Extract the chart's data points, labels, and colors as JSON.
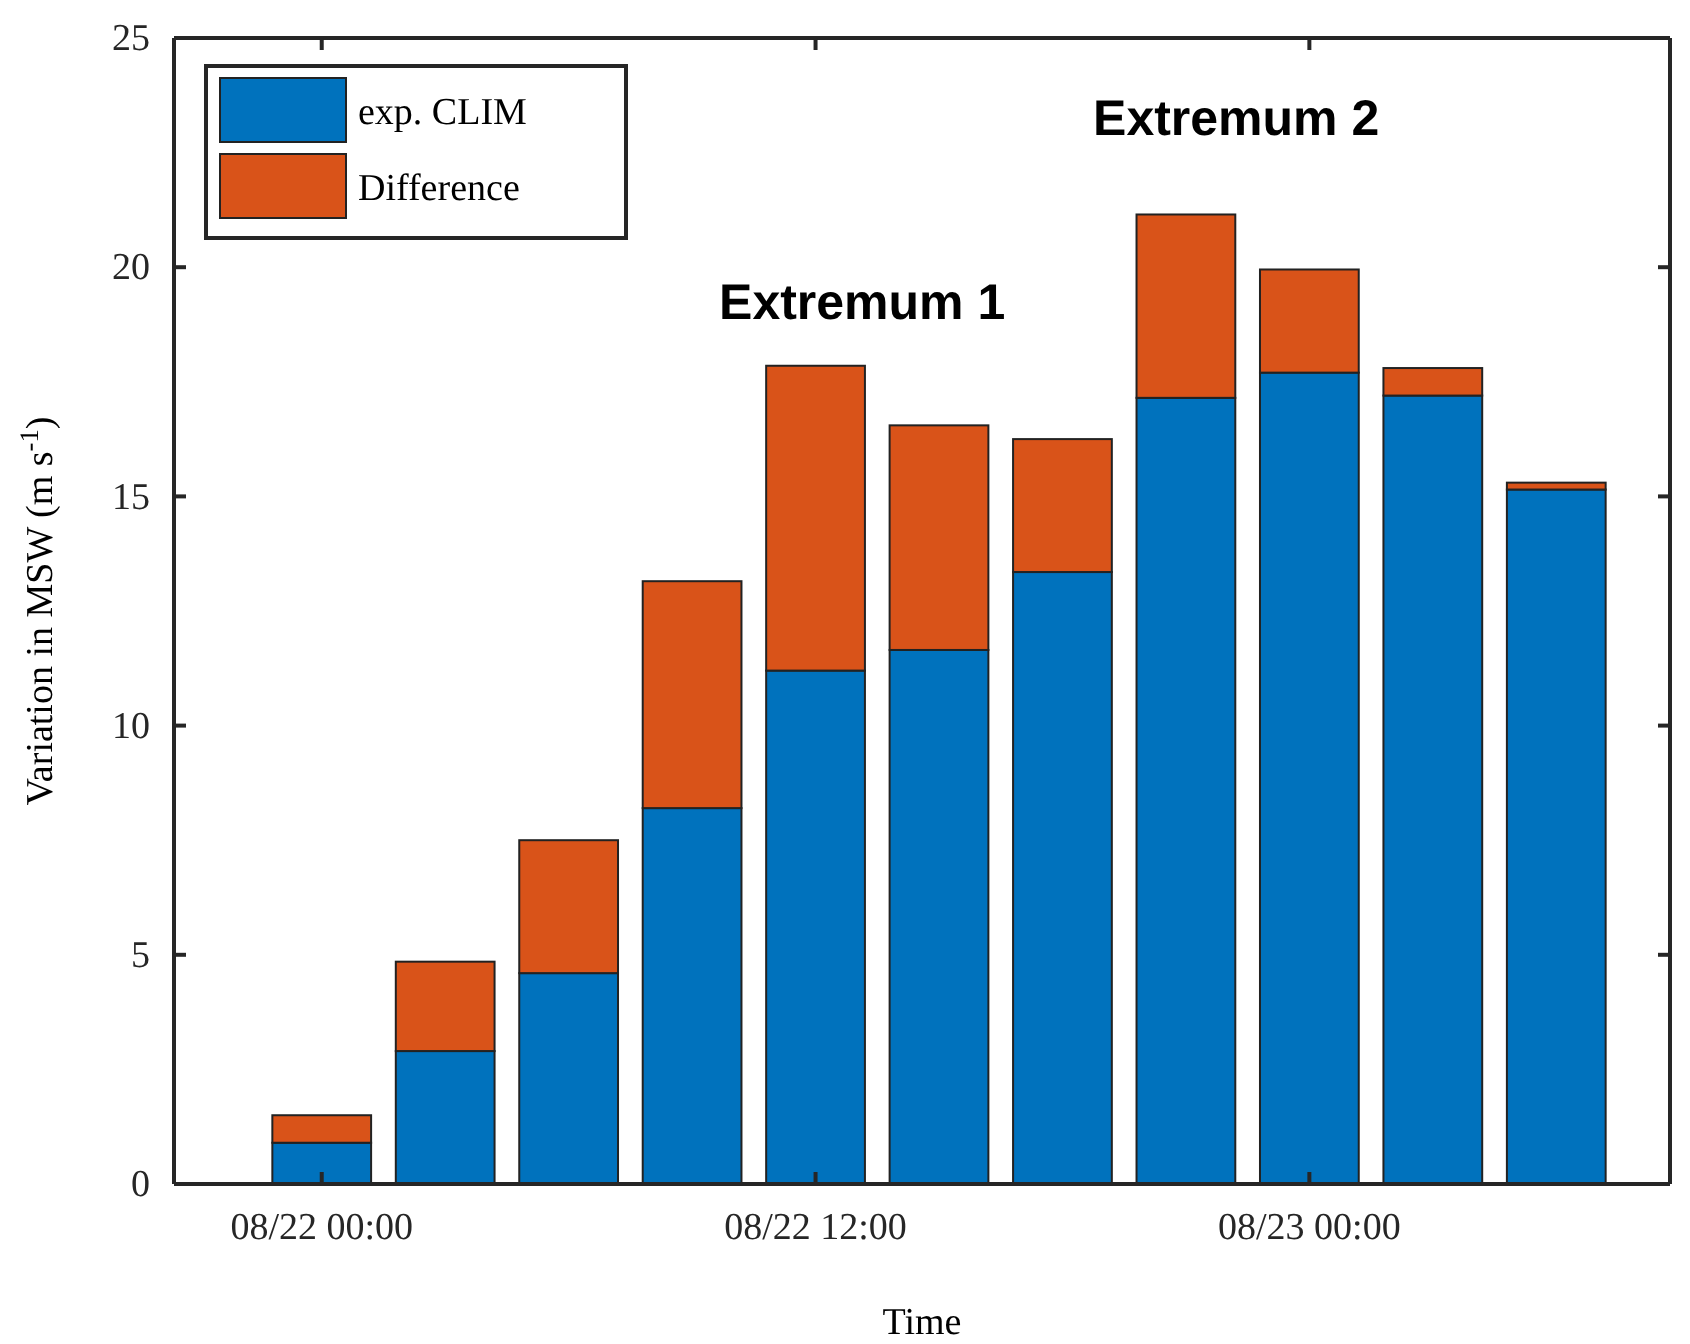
{
  "chart_data": {
    "type": "bar",
    "stacked": true,
    "xlabel": "Time",
    "ylabel": "Variation in MSW (m s$^{-1}$)",
    "categories": [
      "08/22 00:00",
      null,
      null,
      null,
      "08/22 12:00",
      null,
      null,
      null,
      "08/23 00:00",
      null,
      null
    ],
    "series": [
      {
        "name": "exp. CLIM",
        "color": "#0072bd",
        "values": [
          0.9,
          2.9,
          4.6,
          8.2,
          11.2,
          11.65,
          13.35,
          17.15,
          17.7,
          17.2,
          15.15
        ]
      },
      {
        "name": "Difference",
        "color": "#d95319",
        "values": [
          0.6,
          1.95,
          2.9,
          4.95,
          6.65,
          4.9,
          2.9,
          4.0,
          2.25,
          0.6,
          0.15
        ]
      }
    ],
    "ylim": [
      0,
      25
    ],
    "yticks": [
      0,
      5,
      10,
      15,
      20,
      25
    ],
    "annotations": [
      "Extremum 1",
      "Extremum 2"
    ],
    "legend": "top left",
    "grid": false
  }
}
